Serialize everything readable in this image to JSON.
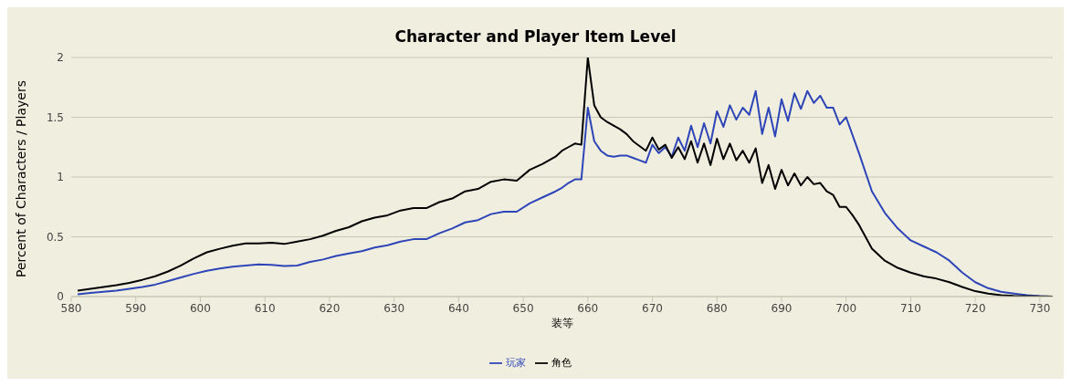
{
  "chart_data": {
    "type": "line",
    "title": "Character and Player Item Level",
    "xlabel": "装等",
    "ylabel": "Percent of Characters / Players",
    "x": [
      581,
      583,
      585,
      587,
      589,
      591,
      593,
      595,
      597,
      599,
      601,
      603,
      605,
      607,
      609,
      611,
      613,
      615,
      617,
      619,
      621,
      623,
      625,
      627,
      629,
      631,
      633,
      635,
      637,
      639,
      641,
      643,
      645,
      647,
      649,
      651,
      653,
      655,
      656,
      657,
      658,
      659,
      660,
      661,
      662,
      663,
      664,
      665,
      666,
      667,
      668,
      669,
      670,
      671,
      672,
      673,
      674,
      675,
      676,
      677,
      678,
      679,
      680,
      681,
      682,
      683,
      684,
      685,
      686,
      687,
      688,
      689,
      690,
      691,
      692,
      693,
      694,
      695,
      696,
      697,
      698,
      699,
      700,
      701,
      702,
      704,
      706,
      708,
      710,
      712,
      714,
      716,
      718,
      720,
      722,
      724,
      726,
      728,
      730,
      732
    ],
    "series": [
      {
        "name": "玩家",
        "color": "#2e45b8",
        "values": [
          0.02,
          0.03,
          0.04,
          0.05,
          0.065,
          0.08,
          0.1,
          0.13,
          0.16,
          0.19,
          0.215,
          0.235,
          0.25,
          0.26,
          0.27,
          0.265,
          0.255,
          0.26,
          0.29,
          0.31,
          0.34,
          0.36,
          0.38,
          0.41,
          0.43,
          0.46,
          0.48,
          0.48,
          0.53,
          0.57,
          0.62,
          0.64,
          0.69,
          0.71,
          0.71,
          0.78,
          0.83,
          0.88,
          0.91,
          0.95,
          0.98,
          0.98,
          1.58,
          1.3,
          1.22,
          1.18,
          1.17,
          1.18,
          1.18,
          1.16,
          1.14,
          1.12,
          1.27,
          1.2,
          1.25,
          1.17,
          1.33,
          1.22,
          1.43,
          1.25,
          1.45,
          1.28,
          1.55,
          1.42,
          1.6,
          1.48,
          1.58,
          1.52,
          1.72,
          1.36,
          1.58,
          1.34,
          1.65,
          1.47,
          1.7,
          1.57,
          1.72,
          1.62,
          1.68,
          1.58,
          1.58,
          1.44,
          1.5,
          1.35,
          1.2,
          0.88,
          0.7,
          0.57,
          0.47,
          0.42,
          0.37,
          0.3,
          0.2,
          0.12,
          0.07,
          0.04,
          0.025,
          0.012,
          0.004,
          0
        ]
      },
      {
        "name": "角色",
        "color": "#000000",
        "values": [
          0.05,
          0.065,
          0.08,
          0.095,
          0.115,
          0.14,
          0.17,
          0.21,
          0.26,
          0.32,
          0.37,
          0.4,
          0.425,
          0.445,
          0.445,
          0.45,
          0.44,
          0.46,
          0.48,
          0.51,
          0.55,
          0.58,
          0.63,
          0.66,
          0.68,
          0.72,
          0.74,
          0.74,
          0.79,
          0.82,
          0.88,
          0.9,
          0.96,
          0.98,
          0.97,
          1.06,
          1.11,
          1.17,
          1.22,
          1.25,
          1.28,
          1.27,
          2.0,
          1.6,
          1.5,
          1.46,
          1.43,
          1.4,
          1.36,
          1.3,
          1.26,
          1.22,
          1.33,
          1.23,
          1.27,
          1.16,
          1.25,
          1.15,
          1.3,
          1.12,
          1.28,
          1.1,
          1.32,
          1.15,
          1.28,
          1.14,
          1.22,
          1.12,
          1.24,
          0.95,
          1.1,
          0.9,
          1.06,
          0.93,
          1.03,
          0.93,
          1.0,
          0.94,
          0.95,
          0.88,
          0.85,
          0.75,
          0.75,
          0.68,
          0.6,
          0.4,
          0.3,
          0.24,
          0.2,
          0.17,
          0.15,
          0.12,
          0.08,
          0.045,
          0.025,
          0.012,
          0.006,
          0.003,
          0.001,
          0
        ]
      }
    ],
    "xlim": [
      580,
      732
    ],
    "xticks": [
      580,
      590,
      600,
      610,
      620,
      630,
      640,
      650,
      660,
      670,
      680,
      690,
      700,
      710,
      720,
      730
    ],
    "ylim": [
      0,
      2
    ],
    "yticks": [
      0,
      0.5,
      1,
      1.5,
      2
    ],
    "grid": "y",
    "legend": "bottom",
    "marker": "none",
    "line_style": "solid"
  }
}
